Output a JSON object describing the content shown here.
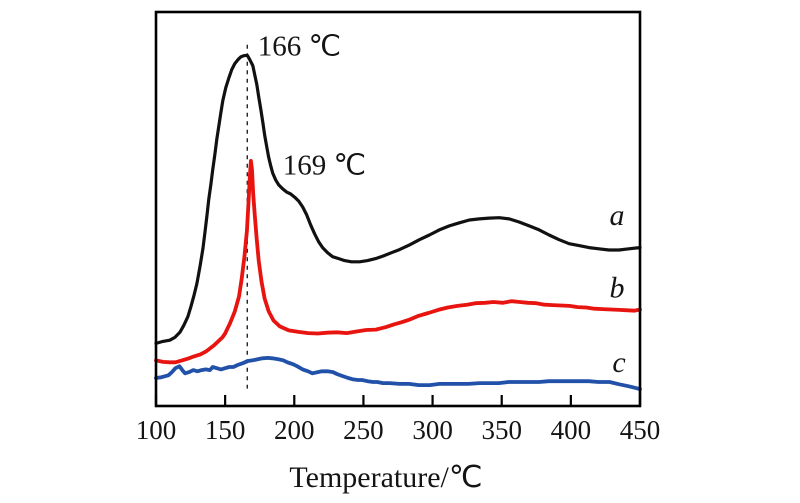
{
  "chart_data": {
    "type": "line",
    "title": "",
    "xlabel": "Temperature/℃",
    "ylabel": "",
    "xlim": [
      100,
      450
    ],
    "ylim": [
      0,
      1
    ],
    "y_axis": "none (arbitrary units, no scale shown)",
    "grid": false,
    "x_ticks": [
      100,
      150,
      200,
      250,
      300,
      350,
      400,
      450
    ],
    "frame_color": "#000000",
    "background": "#ffffff",
    "series": [
      {
        "name": "a",
        "color": "#111111",
        "peak_temperature_label": "166 ℃",
        "points": [
          [
            100,
            0.159
          ],
          [
            105,
            0.164
          ],
          [
            110,
            0.167
          ],
          [
            113.7,
            0.174
          ],
          [
            117.3,
            0.187
          ],
          [
            120.2,
            0.205
          ],
          [
            123.1,
            0.227
          ],
          [
            125.3,
            0.253
          ],
          [
            127.4,
            0.28
          ],
          [
            129.6,
            0.311
          ],
          [
            131.8,
            0.354
          ],
          [
            133.9,
            0.399
          ],
          [
            135.4,
            0.442
          ],
          [
            136.8,
            0.482
          ],
          [
            138.2,
            0.525
          ],
          [
            139.7,
            0.563
          ],
          [
            141.1,
            0.601
          ],
          [
            142.6,
            0.639
          ],
          [
            144,
            0.677
          ],
          [
            145.5,
            0.712
          ],
          [
            146.9,
            0.745
          ],
          [
            148.3,
            0.775
          ],
          [
            150.5,
            0.808
          ],
          [
            152.7,
            0.833
          ],
          [
            154.8,
            0.854
          ],
          [
            157,
            0.869
          ],
          [
            159.2,
            0.879
          ],
          [
            161.3,
            0.886
          ],
          [
            163.5,
            0.889
          ],
          [
            166,
            0.89
          ],
          [
            167.8,
            0.879
          ],
          [
            170,
            0.864
          ],
          [
            171.4,
            0.841
          ],
          [
            172.9,
            0.816
          ],
          [
            174.3,
            0.785
          ],
          [
            175.8,
            0.753
          ],
          [
            177.2,
            0.72
          ],
          [
            178.6,
            0.687
          ],
          [
            180.1,
            0.657
          ],
          [
            181.5,
            0.631
          ],
          [
            183,
            0.609
          ],
          [
            184.4,
            0.591
          ],
          [
            186.6,
            0.573
          ],
          [
            188.8,
            0.561
          ],
          [
            191.6,
            0.551
          ],
          [
            194.5,
            0.543
          ],
          [
            197.4,
            0.538
          ],
          [
            200.3,
            0.53
          ],
          [
            203.2,
            0.52
          ],
          [
            206.1,
            0.505
          ],
          [
            209,
            0.485
          ],
          [
            211.8,
            0.46
          ],
          [
            214.7,
            0.437
          ],
          [
            217.6,
            0.417
          ],
          [
            220.5,
            0.402
          ],
          [
            224.1,
            0.389
          ],
          [
            227.7,
            0.379
          ],
          [
            232.1,
            0.374
          ],
          [
            236.4,
            0.369
          ],
          [
            241.4,
            0.366
          ],
          [
            247.2,
            0.366
          ],
          [
            253,
            0.369
          ],
          [
            258.8,
            0.374
          ],
          [
            264.5,
            0.381
          ],
          [
            270.3,
            0.389
          ],
          [
            276.1,
            0.397
          ],
          [
            283.3,
            0.409
          ],
          [
            290.5,
            0.422
          ],
          [
            297.7,
            0.434
          ],
          [
            304.9,
            0.447
          ],
          [
            312.1,
            0.457
          ],
          [
            319.4,
            0.465
          ],
          [
            326.6,
            0.472
          ],
          [
            333.8,
            0.475
          ],
          [
            341,
            0.477
          ],
          [
            348.2,
            0.478
          ],
          [
            355.4,
            0.475
          ],
          [
            362.6,
            0.467
          ],
          [
            369.9,
            0.457
          ],
          [
            377.1,
            0.447
          ],
          [
            384.3,
            0.434
          ],
          [
            391.5,
            0.422
          ],
          [
            398.7,
            0.412
          ],
          [
            405.9,
            0.407
          ],
          [
            413.1,
            0.402
          ],
          [
            420.3,
            0.399
          ],
          [
            427.5,
            0.396
          ],
          [
            434.8,
            0.396
          ],
          [
            442,
            0.399
          ],
          [
            450,
            0.402
          ]
        ]
      },
      {
        "name": "b",
        "color": "#e81410",
        "peak_temperature_label": "169 ℃",
        "points": [
          [
            100,
            0.116
          ],
          [
            105,
            0.112
          ],
          [
            110,
            0.111
          ],
          [
            114,
            0.111
          ],
          [
            119,
            0.116
          ],
          [
            123,
            0.12
          ],
          [
            126,
            0.124
          ],
          [
            132,
            0.131
          ],
          [
            136,
            0.138
          ],
          [
            139,
            0.146
          ],
          [
            142,
            0.154
          ],
          [
            145,
            0.164
          ],
          [
            148,
            0.174
          ],
          [
            150,
            0.184
          ],
          [
            153.5,
            0.21
          ],
          [
            157,
            0.24
          ],
          [
            160,
            0.278
          ],
          [
            162,
            0.323
          ],
          [
            164,
            0.381
          ],
          [
            165.7,
            0.444
          ],
          [
            167,
            0.525
          ],
          [
            167.8,
            0.581
          ],
          [
            168.6,
            0.622
          ],
          [
            169.4,
            0.6
          ],
          [
            170.3,
            0.538
          ],
          [
            171.5,
            0.48
          ],
          [
            172.8,
            0.424
          ],
          [
            174.3,
            0.369
          ],
          [
            176.3,
            0.316
          ],
          [
            178.5,
            0.273
          ],
          [
            181.5,
            0.24
          ],
          [
            185,
            0.217
          ],
          [
            189.5,
            0.202
          ],
          [
            196,
            0.192
          ],
          [
            203,
            0.188
          ],
          [
            210,
            0.185
          ],
          [
            217,
            0.184
          ],
          [
            224,
            0.186
          ],
          [
            231,
            0.187
          ],
          [
            238,
            0.185
          ],
          [
            245,
            0.189
          ],
          [
            252,
            0.193
          ],
          [
            259,
            0.194
          ],
          [
            266,
            0.2
          ],
          [
            272,
            0.207
          ],
          [
            278,
            0.213
          ],
          [
            284,
            0.22
          ],
          [
            290,
            0.229
          ],
          [
            297,
            0.236
          ],
          [
            304,
            0.244
          ],
          [
            311,
            0.25
          ],
          [
            318,
            0.254
          ],
          [
            325,
            0.257
          ],
          [
            331,
            0.261
          ],
          [
            338,
            0.262
          ],
          [
            344,
            0.264
          ],
          [
            351,
            0.262
          ],
          [
            357,
            0.266
          ],
          [
            363,
            0.264
          ],
          [
            369,
            0.262
          ],
          [
            375,
            0.261
          ],
          [
            381,
            0.257
          ],
          [
            387,
            0.256
          ],
          [
            393,
            0.255
          ],
          [
            399,
            0.254
          ],
          [
            405,
            0.251
          ],
          [
            411,
            0.25
          ],
          [
            417,
            0.247
          ],
          [
            423,
            0.246
          ],
          [
            429,
            0.245
          ],
          [
            435,
            0.244
          ],
          [
            441,
            0.243
          ],
          [
            446,
            0.242
          ],
          [
            450,
            0.245
          ]
        ]
      },
      {
        "name": "c",
        "color": "#2151a8",
        "points": [
          [
            100,
            0.071
          ],
          [
            104,
            0.073
          ],
          [
            109,
            0.078
          ],
          [
            111.5,
            0.086
          ],
          [
            114,
            0.096
          ],
          [
            117,
            0.101
          ],
          [
            119,
            0.091
          ],
          [
            121,
            0.083
          ],
          [
            124,
            0.086
          ],
          [
            127,
            0.091
          ],
          [
            130,
            0.088
          ],
          [
            133,
            0.091
          ],
          [
            136,
            0.093
          ],
          [
            139,
            0.091
          ],
          [
            141,
            0.099
          ],
          [
            144,
            0.096
          ],
          [
            147,
            0.093
          ],
          [
            150,
            0.096
          ],
          [
            153,
            0.099
          ],
          [
            156,
            0.099
          ],
          [
            159,
            0.104
          ],
          [
            163,
            0.109
          ],
          [
            166,
            0.114
          ],
          [
            170,
            0.116
          ],
          [
            174,
            0.119
          ],
          [
            177,
            0.121
          ],
          [
            181,
            0.122
          ],
          [
            184,
            0.121
          ],
          [
            188,
            0.119
          ],
          [
            192,
            0.116
          ],
          [
            195,
            0.111
          ],
          [
            199,
            0.106
          ],
          [
            202,
            0.101
          ],
          [
            206,
            0.093
          ],
          [
            210,
            0.088
          ],
          [
            213,
            0.083
          ],
          [
            217,
            0.086
          ],
          [
            220,
            0.088
          ],
          [
            224,
            0.088
          ],
          [
            228,
            0.086
          ],
          [
            231,
            0.081
          ],
          [
            235,
            0.076
          ],
          [
            239,
            0.071
          ],
          [
            242,
            0.068
          ],
          [
            246,
            0.066
          ],
          [
            249,
            0.066
          ],
          [
            253,
            0.063
          ],
          [
            257,
            0.061
          ],
          [
            260,
            0.061
          ],
          [
            264,
            0.058
          ],
          [
            269,
            0.058
          ],
          [
            276,
            0.056
          ],
          [
            283,
            0.056
          ],
          [
            290,
            0.053
          ],
          [
            298,
            0.053
          ],
          [
            305,
            0.056
          ],
          [
            312,
            0.056
          ],
          [
            319,
            0.056
          ],
          [
            326,
            0.056
          ],
          [
            334,
            0.058
          ],
          [
            341,
            0.058
          ],
          [
            348,
            0.058
          ],
          [
            355,
            0.061
          ],
          [
            363,
            0.061
          ],
          [
            370,
            0.061
          ],
          [
            377,
            0.061
          ],
          [
            384,
            0.063
          ],
          [
            392,
            0.063
          ],
          [
            399,
            0.063
          ],
          [
            406,
            0.063
          ],
          [
            413,
            0.063
          ],
          [
            420,
            0.061
          ],
          [
            428,
            0.061
          ],
          [
            435,
            0.055
          ],
          [
            442,
            0.05
          ],
          [
            450,
            0.043
          ]
        ]
      }
    ],
    "annotations": {
      "vline": {
        "t": 166,
        "v_from": 0.044,
        "v_to": 0.917,
        "style": "dashed",
        "color": "#222222"
      },
      "texts": [
        {
          "label": "166 ℃",
          "t": 173.6,
          "v": 0.889,
          "anchor": "start"
        },
        {
          "label": "169 ℃",
          "t": 191.6,
          "v": 0.588,
          "anchor": "start"
        }
      ],
      "series_labels": [
        {
          "label": "a",
          "t": 433.4,
          "v": 0.46
        },
        {
          "label": "b",
          "t": 433.4,
          "v": 0.275
        },
        {
          "label": "c",
          "t": 434.8,
          "v": 0.086
        }
      ]
    }
  }
}
